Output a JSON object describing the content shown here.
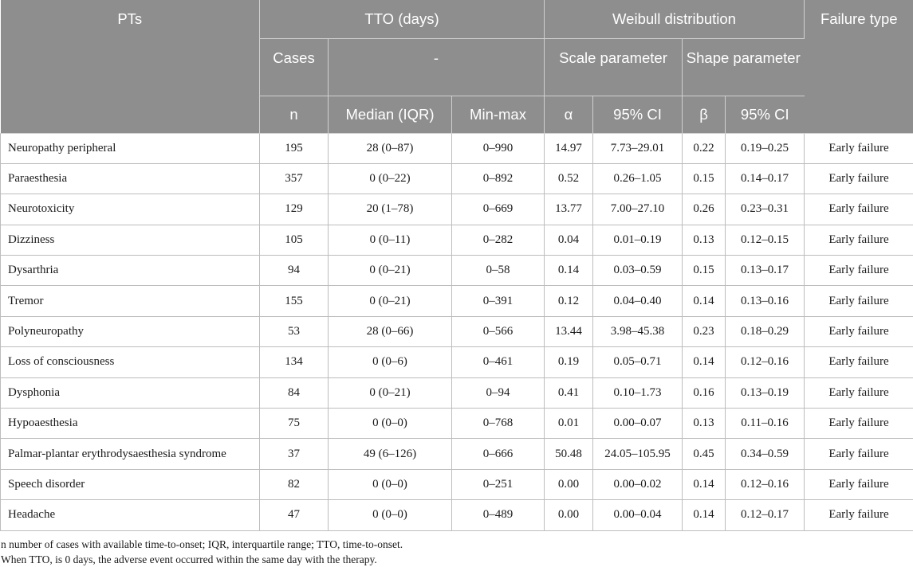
{
  "header": {
    "pts": "PTs",
    "tto": "TTO (days)",
    "weibull": "Weibull distribution",
    "failure_type": "Failure type",
    "cases": "Cases",
    "dash": "-",
    "scale_parameter": "Scale parameter",
    "shape_parameter": "Shape parameter",
    "n": "n",
    "median_iqr": "Median (IQR)",
    "min_max": "Min-max",
    "alpha": "α",
    "ci_alpha": "95% CI",
    "beta": "β",
    "ci_beta": "95% CI"
  },
  "rows": [
    {
      "pt": "Neuropathy peripheral",
      "n": "195",
      "median": "28 (0–87)",
      "minmax": "0–990",
      "alpha": "14.97",
      "ci_a": "7.73–29.01",
      "beta": "0.22",
      "ci_b": "0.19–0.25",
      "failure": "Early failure"
    },
    {
      "pt": "Paraesthesia",
      "n": "357",
      "median": "0 (0–22)",
      "minmax": "0–892",
      "alpha": "0.52",
      "ci_a": "0.26–1.05",
      "beta": "0.15",
      "ci_b": "0.14–0.17",
      "failure": "Early failure"
    },
    {
      "pt": "Neurotoxicity",
      "n": "129",
      "median": "20 (1–78)",
      "minmax": "0–669",
      "alpha": "13.77",
      "ci_a": "7.00–27.10",
      "beta": "0.26",
      "ci_b": "0.23–0.31",
      "failure": "Early failure"
    },
    {
      "pt": "Dizziness",
      "n": "105",
      "median": "0 (0–11)",
      "minmax": "0–282",
      "alpha": "0.04",
      "ci_a": "0.01–0.19",
      "beta": "0.13",
      "ci_b": "0.12–0.15",
      "failure": "Early failure"
    },
    {
      "pt": "Dysarthria",
      "n": "94",
      "median": "0 (0–21)",
      "minmax": "0–58",
      "alpha": "0.14",
      "ci_a": "0.03–0.59",
      "beta": "0.15",
      "ci_b": "0.13–0.17",
      "failure": "Early failure"
    },
    {
      "pt": "Tremor",
      "n": "155",
      "median": "0 (0–21)",
      "minmax": "0–391",
      "alpha": "0.12",
      "ci_a": "0.04–0.40",
      "beta": "0.14",
      "ci_b": "0.13–0.16",
      "failure": "Early failure"
    },
    {
      "pt": "Polyneuropathy",
      "n": "53",
      "median": "28 (0–66)",
      "minmax": "0–566",
      "alpha": "13.44",
      "ci_a": "3.98–45.38",
      "beta": "0.23",
      "ci_b": "0.18–0.29",
      "failure": "Early failure"
    },
    {
      "pt": "Loss of consciousness",
      "n": "134",
      "median": "0 (0–6)",
      "minmax": "0–461",
      "alpha": "0.19",
      "ci_a": "0.05–0.71",
      "beta": "0.14",
      "ci_b": "0.12–0.16",
      "failure": "Early failure"
    },
    {
      "pt": "Dysphonia",
      "n": "84",
      "median": "0 (0–21)",
      "minmax": "0–94",
      "alpha": "0.41",
      "ci_a": "0.10–1.73",
      "beta": "0.16",
      "ci_b": "0.13–0.19",
      "failure": "Early failure"
    },
    {
      "pt": "Hypoaesthesia",
      "n": "75",
      "median": "0 (0–0)",
      "minmax": "0–768",
      "alpha": "0.01",
      "ci_a": "0.00–0.07",
      "beta": "0.13",
      "ci_b": "0.11–0.16",
      "failure": "Early failure"
    },
    {
      "pt": "Palmar-plantar erythrodysaesthesia syndrome",
      "n": "37",
      "median": "49 (6–126)",
      "minmax": "0–666",
      "alpha": "50.48",
      "ci_a": "24.05–105.95",
      "beta": "0.45",
      "ci_b": "0.34–0.59",
      "failure": "Early failure"
    },
    {
      "pt": "Speech disorder",
      "n": "82",
      "median": "0 (0–0)",
      "minmax": "0–251",
      "alpha": "0.00",
      "ci_a": "0.00–0.02",
      "beta": "0.14",
      "ci_b": "0.12–0.16",
      "failure": "Early failure"
    },
    {
      "pt": "Headache",
      "n": "47",
      "median": "0 (0–0)",
      "minmax": "0–489",
      "alpha": "0.00",
      "ci_a": "0.00–0.04",
      "beta": "0.14",
      "ci_b": "0.12–0.17",
      "failure": "Early failure"
    }
  ],
  "footnotes": [
    "n number of cases with available time-to-onset; IQR, interquartile range; TTO, time-to-onset.",
    "When TTO, is 0 days, the adverse event occurred within the same day with the therapy."
  ]
}
